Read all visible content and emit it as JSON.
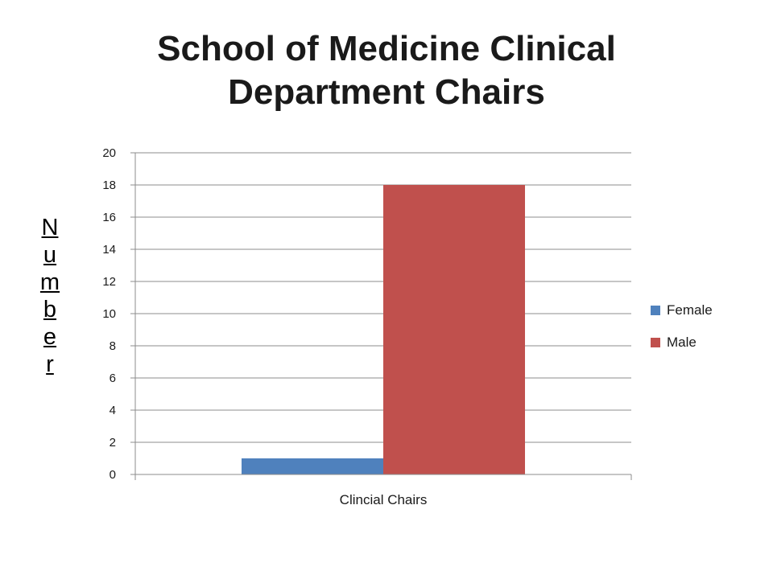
{
  "chart_data": {
    "type": "bar",
    "title_lines": [
      "School of Medicine Clinical",
      "Department Chairs"
    ],
    "ylabel": "Number",
    "xlabel": "",
    "categories": [
      "Clincial Chairs"
    ],
    "series": [
      {
        "name": "Female",
        "values": [
          1
        ],
        "color": "#4f81bd"
      },
      {
        "name": "Male",
        "values": [
          18
        ],
        "color": "#c0504d"
      }
    ],
    "ylim": [
      0,
      20
    ],
    "yticks": [
      0,
      2,
      4,
      6,
      8,
      10,
      12,
      14,
      16,
      18,
      20
    ],
    "grid": true,
    "legend_position": "right"
  }
}
